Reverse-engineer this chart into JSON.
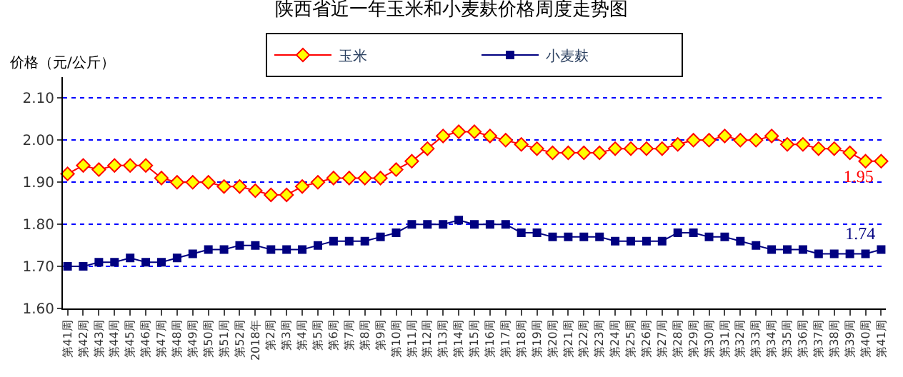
{
  "chart_data": {
    "type": "line",
    "title": "陕西省近一年玉米和小麦麸价格周度走势图",
    "ylabel": "价格（元/公斤）",
    "categories": [
      "第41周",
      "第42周",
      "第43周",
      "第44周",
      "第45周",
      "第46周",
      "第47周",
      "第48周",
      "第49周",
      "第50周",
      "第51周",
      "第52周",
      "2018年",
      "第2周",
      "第3周",
      "第4周",
      "第5周",
      "第6周",
      "第7周",
      "第8周",
      "第9周",
      "第10周",
      "第11周",
      "第12周",
      "第13周",
      "第14周",
      "第15周",
      "第16周",
      "第17周",
      "第18周",
      "第19周",
      "第20周",
      "第21周",
      "第22周",
      "第23周",
      "第24周",
      "第25周",
      "第26周",
      "第27周",
      "第28周",
      "第29周",
      "第30周",
      "第31周",
      "第32周",
      "第33周",
      "第34周",
      "第35周",
      "第36周",
      "第37周",
      "第38周",
      "第39周",
      "第40周",
      "第41周"
    ],
    "series": [
      {
        "name": "玉米",
        "color": "#ff0000",
        "marker": "diamond",
        "values": [
          1.92,
          1.94,
          1.93,
          1.94,
          1.94,
          1.94,
          1.91,
          1.9,
          1.9,
          1.9,
          1.89,
          1.89,
          1.88,
          1.87,
          1.87,
          1.89,
          1.9,
          1.91,
          1.91,
          1.91,
          1.91,
          1.93,
          1.95,
          1.98,
          2.01,
          2.02,
          2.02,
          2.01,
          2.0,
          1.99,
          1.98,
          1.97,
          1.97,
          1.97,
          1.97,
          1.98,
          1.98,
          1.98,
          1.98,
          1.99,
          2.0,
          2.0,
          2.01,
          2.0,
          2.0,
          2.01,
          1.99,
          1.99,
          1.98,
          1.98,
          1.97,
          1.95,
          1.95
        ],
        "value_labels": [
          null,
          null,
          null,
          null,
          null,
          null,
          null,
          null,
          null,
          null,
          null,
          null,
          null,
          null,
          null,
          null,
          null,
          null,
          null,
          null,
          null,
          null,
          null,
          null,
          null,
          null,
          null,
          null,
          null,
          null,
          null,
          null,
          null,
          null,
          null,
          null,
          null,
          null,
          null,
          null,
          null,
          null,
          null,
          null,
          null,
          null,
          null,
          null,
          null,
          null,
          null,
          null,
          "1.95"
        ]
      },
      {
        "name": "小麦麸",
        "color": "#000080",
        "marker": "square",
        "values": [
          1.7,
          1.7,
          1.71,
          1.71,
          1.72,
          1.71,
          1.71,
          1.72,
          1.73,
          1.74,
          1.74,
          1.75,
          1.75,
          1.74,
          1.74,
          1.74,
          1.75,
          1.76,
          1.76,
          1.76,
          1.77,
          1.78,
          1.8,
          1.8,
          1.8,
          1.81,
          1.8,
          1.8,
          1.8,
          1.78,
          1.78,
          1.77,
          1.77,
          1.77,
          1.77,
          1.76,
          1.76,
          1.76,
          1.76,
          1.78,
          1.78,
          1.77,
          1.77,
          1.76,
          1.75,
          1.74,
          1.74,
          1.74,
          1.73,
          1.73,
          1.73,
          1.73,
          1.74
        ],
        "value_labels": [
          null,
          null,
          null,
          null,
          null,
          null,
          null,
          null,
          null,
          null,
          null,
          null,
          null,
          null,
          null,
          null,
          null,
          null,
          null,
          null,
          null,
          null,
          null,
          null,
          null,
          null,
          null,
          null,
          null,
          null,
          null,
          null,
          null,
          null,
          null,
          null,
          null,
          null,
          null,
          null,
          null,
          null,
          null,
          null,
          null,
          null,
          null,
          null,
          null,
          null,
          null,
          null,
          "1.74"
        ]
      }
    ],
    "ylim": [
      1.6,
      2.15
    ],
    "yticks": [
      {
        "value": 1.6,
        "label": "1.60"
      },
      {
        "value": 1.7,
        "label": "1.70"
      },
      {
        "value": 1.8,
        "label": "1.80"
      },
      {
        "value": 1.9,
        "label": "1.90"
      },
      {
        "value": 2.0,
        "label": "2.00"
      },
      {
        "value": 2.1,
        "label": "2.10"
      }
    ],
    "grid": "y",
    "legend": "top",
    "line_style": "solid"
  }
}
